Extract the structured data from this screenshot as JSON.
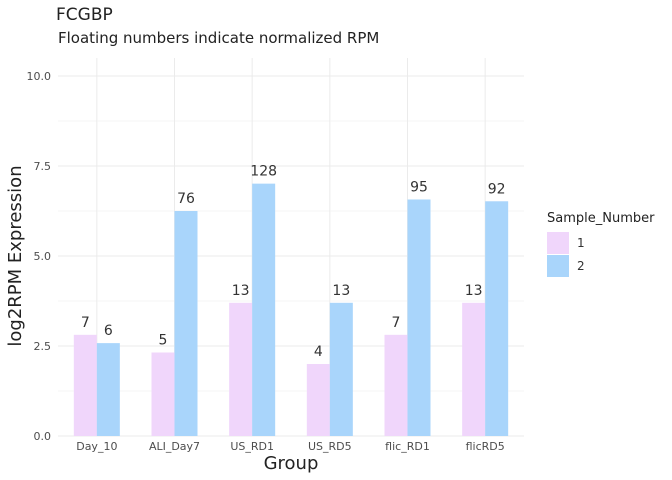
{
  "chart_data": {
    "type": "bar",
    "title": "FCGBP",
    "subtitle": "Floating numbers indicate normalized RPM",
    "xlabel": "Group",
    "ylabel": "log2RPM Expression",
    "categories": [
      "Day_10",
      "ALI_Day7",
      "US_RD1",
      "US_RD5",
      "flic_RD1",
      "flicRD5"
    ],
    "ylim": [
      0,
      10.5
    ],
    "yticks": [
      0.0,
      2.5,
      5.0,
      7.5,
      10.0
    ],
    "ytick_labels": [
      "0.0",
      "2.5",
      "5.0",
      "7.5",
      "10.0"
    ],
    "grid": true,
    "legend": {
      "title": "Sample_Number",
      "position": "right"
    },
    "series": [
      {
        "name": "1",
        "color": "#f0d6fb",
        "values": [
          2.81,
          2.32,
          3.7,
          2.0,
          2.81,
          3.7
        ],
        "labels": [
          "7",
          "5",
          "13",
          "4",
          "7",
          "13"
        ]
      },
      {
        "name": "2",
        "color": "#a9d5fb",
        "values": [
          2.58,
          6.25,
          7.01,
          3.7,
          6.57,
          6.52
        ],
        "labels": [
          "6",
          "76",
          "128",
          "13",
          "95",
          "92"
        ]
      }
    ]
  }
}
